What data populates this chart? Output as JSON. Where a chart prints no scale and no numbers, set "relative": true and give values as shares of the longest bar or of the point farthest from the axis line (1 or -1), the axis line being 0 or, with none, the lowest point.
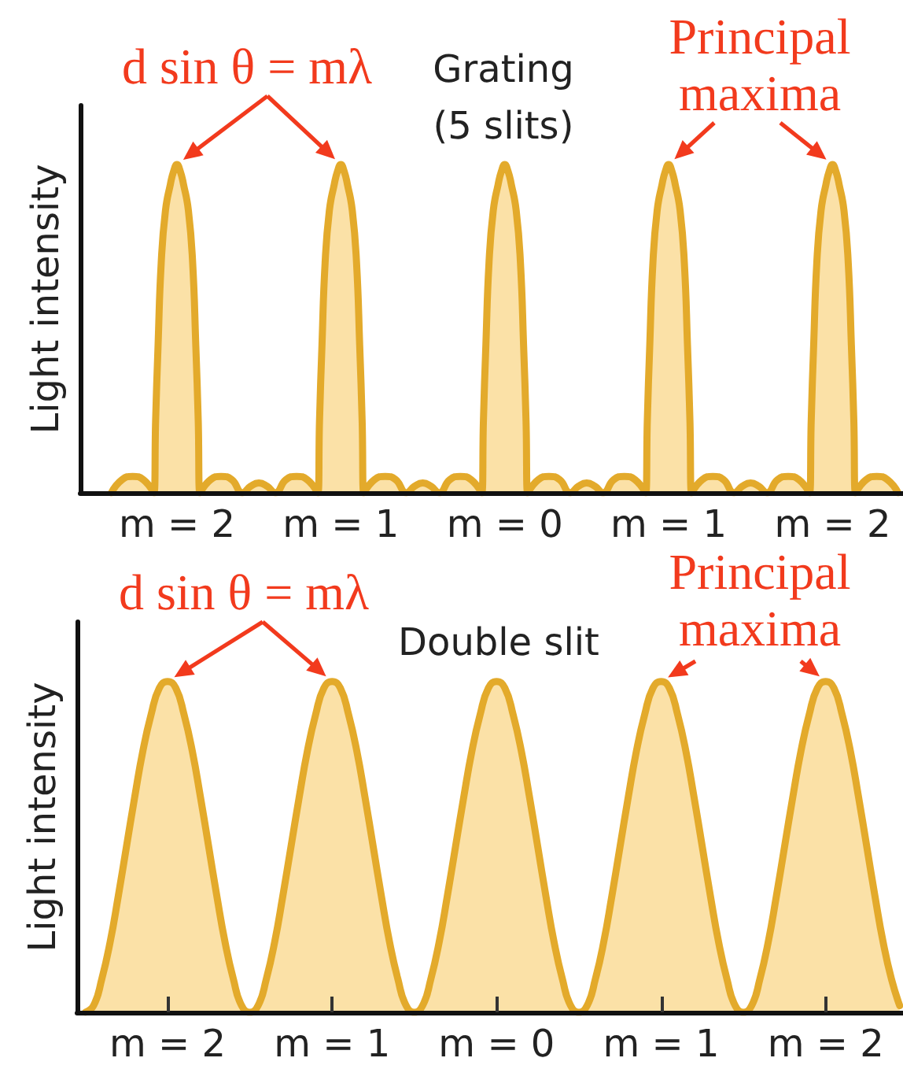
{
  "chart_data": [
    {
      "type": "area",
      "title": "Grating (5 slits)",
      "ylabel": "Light intensity",
      "relative": true,
      "color": "#e3aa2b",
      "marker": "none",
      "xlim": [
        -2.59,
        2.43
      ],
      "xticks": [
        {
          "value": -2,
          "label": "m = 2"
        },
        {
          "value": -1,
          "label": "m = 1"
        },
        {
          "value": 0,
          "label": "m = 0"
        },
        {
          "value": 1,
          "label": "m = 1"
        },
        {
          "value": 2,
          "label": "m = 2"
        }
      ],
      "annotations": [
        "d sin θ = mλ",
        "Principal maxima"
      ],
      "x": [
        -2.4,
        -2.335,
        -2.27,
        -2.205,
        -2.14,
        -2.13,
        -2.115,
        -2.096,
        -2.07,
        -2.04,
        -2.02,
        -2,
        -1.98,
        -1.96,
        -1.93,
        -1.904,
        -1.885,
        -1.87,
        -1.86,
        -1.795,
        -1.73,
        -1.665,
        -1.6,
        -1.55,
        -1.5,
        -1.45,
        -1.4,
        -1.335,
        -1.27,
        -1.205,
        -1.14,
        -1.13,
        -1.115,
        -1.096,
        -1.07,
        -1.04,
        -1.02,
        -1,
        -0.98,
        -0.96,
        -0.93,
        -0.904,
        -0.885,
        -0.87,
        -0.86,
        -0.795,
        -0.73,
        -0.665,
        -0.6,
        -0.55,
        -0.5,
        -0.45,
        -0.4,
        -0.335,
        -0.27,
        -0.205,
        -0.14,
        -0.13,
        -0.115,
        -0.096,
        -0.07,
        -0.04,
        -0.02,
        0,
        0.02,
        0.04,
        0.07,
        0.096,
        0.115,
        0.13,
        0.14,
        0.205,
        0.27,
        0.335,
        0.4,
        0.45,
        0.5,
        0.55,
        0.6,
        0.665,
        0.73,
        0.795,
        0.86,
        0.87,
        0.885,
        0.904,
        0.93,
        0.96,
        0.98,
        1,
        1.02,
        1.04,
        1.07,
        1.096,
        1.115,
        1.13,
        1.14,
        1.205,
        1.27,
        1.335,
        1.4,
        1.45,
        1.5,
        1.55,
        1.6,
        1.665,
        1.73,
        1.795,
        1.86,
        1.87,
        1.885,
        1.904,
        1.93,
        1.96,
        1.98,
        2,
        2.02,
        2.04,
        2.07,
        2.096,
        2.115,
        2.13,
        2.14,
        2.205,
        2.27,
        2.335,
        2.4
      ],
      "values": [
        0,
        0.04,
        0.05,
        0.04,
        0,
        0.22,
        0.45,
        0.7,
        0.86,
        0.94,
        0.98,
        1,
        0.98,
        0.94,
        0.86,
        0.7,
        0.45,
        0.22,
        0,
        0.04,
        0.05,
        0.04,
        0,
        0.02,
        0.03,
        0.02,
        0,
        0.04,
        0.05,
        0.04,
        0,
        0.22,
        0.45,
        0.7,
        0.86,
        0.94,
        0.98,
        1,
        0.98,
        0.94,
        0.86,
        0.7,
        0.45,
        0.22,
        0,
        0.04,
        0.05,
        0.04,
        0,
        0.02,
        0.03,
        0.02,
        0,
        0.04,
        0.05,
        0.04,
        0,
        0.22,
        0.45,
        0.7,
        0.86,
        0.94,
        0.98,
        1,
        0.98,
        0.94,
        0.86,
        0.7,
        0.45,
        0.22,
        0,
        0.04,
        0.05,
        0.04,
        0,
        0.02,
        0.03,
        0.02,
        0,
        0.04,
        0.05,
        0.04,
        0,
        0.22,
        0.45,
        0.7,
        0.86,
        0.94,
        0.98,
        1,
        0.98,
        0.94,
        0.86,
        0.7,
        0.45,
        0.22,
        0,
        0.04,
        0.05,
        0.04,
        0,
        0.02,
        0.03,
        0.02,
        0,
        0.04,
        0.05,
        0.04,
        0,
        0.22,
        0.45,
        0.7,
        0.86,
        0.94,
        0.98,
        1,
        0.98,
        0.94,
        0.86,
        0.7,
        0.45,
        0.22,
        0,
        0.04,
        0.05,
        0.04,
        0
      ]
    },
    {
      "type": "area",
      "title": "Double slit",
      "ylabel": "Light intensity",
      "relative": true,
      "color": "#e3aa2b",
      "marker": "none",
      "xlim": [
        -2.55,
        2.47
      ],
      "xticks": [
        {
          "value": -2,
          "label": "m = 2"
        },
        {
          "value": -1,
          "label": "m = 1"
        },
        {
          "value": 0,
          "label": "m = 0"
        },
        {
          "value": 1,
          "label": "m = 1"
        },
        {
          "value": 2,
          "label": "m = 2"
        }
      ],
      "annotations": [
        "d sin θ = mλ",
        "Principal maxima"
      ],
      "x": [
        -2.5,
        -2.45,
        -2.4,
        -2.35,
        -2.3,
        -2.25,
        -2.2,
        -2.15,
        -2.1,
        -2.05,
        -2,
        -1.95,
        -1.9,
        -1.85,
        -1.8,
        -1.75,
        -1.7,
        -1.65,
        -1.6,
        -1.55,
        -1.5,
        -1.45,
        -1.4,
        -1.35,
        -1.3,
        -1.25,
        -1.2,
        -1.15,
        -1.1,
        -1.05,
        -1,
        -0.95,
        -0.9,
        -0.85,
        -0.8,
        -0.75,
        -0.7,
        -0.65,
        -0.6,
        -0.55,
        -0.5,
        -0.45,
        -0.4,
        -0.35,
        -0.3,
        -0.25,
        -0.2,
        -0.15,
        -0.1,
        -0.05,
        0,
        0.05,
        0.1,
        0.15,
        0.2,
        0.25,
        0.3,
        0.35,
        0.4,
        0.45,
        0.5,
        0.55,
        0.6,
        0.65,
        0.7,
        0.75,
        0.8,
        0.85,
        0.9,
        0.95,
        1,
        1.05,
        1.1,
        1.15,
        1.2,
        1.25,
        1.3,
        1.35,
        1.4,
        1.45,
        1.5,
        1.55,
        1.6,
        1.65,
        1.7,
        1.75,
        1.8,
        1.85,
        1.9,
        1.95,
        2,
        2.05,
        2.1,
        2.15,
        2.2,
        2.25,
        2.3,
        2.35,
        2.4,
        2.45
      ],
      "values": [
        0,
        0.02,
        0.1,
        0.21,
        0.35,
        0.5,
        0.65,
        0.79,
        0.9,
        0.98,
        1,
        0.98,
        0.9,
        0.79,
        0.65,
        0.5,
        0.35,
        0.21,
        0.1,
        0.02,
        0,
        0.02,
        0.1,
        0.21,
        0.35,
        0.5,
        0.65,
        0.79,
        0.9,
        0.98,
        1,
        0.98,
        0.9,
        0.79,
        0.65,
        0.5,
        0.35,
        0.21,
        0.1,
        0.02,
        0,
        0.02,
        0.1,
        0.21,
        0.35,
        0.5,
        0.65,
        0.79,
        0.9,
        0.98,
        1,
        0.98,
        0.9,
        0.79,
        0.65,
        0.5,
        0.35,
        0.21,
        0.1,
        0.02,
        0,
        0.02,
        0.1,
        0.21,
        0.35,
        0.5,
        0.65,
        0.79,
        0.9,
        0.98,
        1,
        0.98,
        0.9,
        0.79,
        0.65,
        0.5,
        0.35,
        0.21,
        0.1,
        0.02,
        0,
        0.02,
        0.1,
        0.21,
        0.35,
        0.5,
        0.65,
        0.79,
        0.9,
        0.98,
        1,
        0.98,
        0.9,
        0.79,
        0.65,
        0.5,
        0.35,
        0.21,
        0.1,
        0.02
      ]
    }
  ]
}
